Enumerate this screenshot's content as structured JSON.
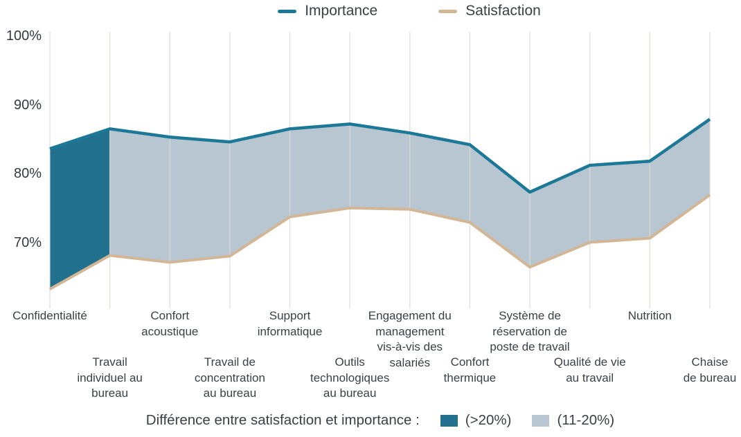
{
  "legend_top": {
    "items": [
      {
        "label": "Importance",
        "color": "#1B7896"
      },
      {
        "label": "Satisfaction",
        "color": "#D2B695"
      }
    ]
  },
  "chart_data": {
    "type": "area",
    "title": "",
    "xlabel": "",
    "ylabel": "",
    "ylim": [
      60,
      100
    ],
    "grid": true,
    "grid_color": "#dbdbd5",
    "ytick_labels": [
      "100%",
      "90%",
      "80%",
      "70%"
    ],
    "ytick_values": [
      100,
      90,
      80,
      70
    ],
    "categories": [
      {
        "label": "Confidentialité",
        "row": "top"
      },
      {
        "label": "Travail\nindividuel au\nbureau",
        "row": "bottom"
      },
      {
        "label": "Confort\nacoustique",
        "row": "top"
      },
      {
        "label": "Travail de\nconcentration\nau bureau",
        "row": "bottom"
      },
      {
        "label": "Support\ninformatique",
        "row": "top"
      },
      {
        "label": "Outils\ntechnologiques\nau bureau",
        "row": "bottom"
      },
      {
        "label": "Engagement du\nmanagement\nvis-à-vis des\nsalariés",
        "row": "top"
      },
      {
        "label": "Confort\nthermique",
        "row": "bottom"
      },
      {
        "label": "Système de\nréservation de\nposte de travail",
        "row": "top"
      },
      {
        "label": "Qualité de vie\nau travail",
        "row": "bottom"
      },
      {
        "label": "Nutrition",
        "row": "top"
      },
      {
        "label": "Chaise\nde bureau",
        "row": "bottom"
      }
    ],
    "series": [
      {
        "name": "Importance",
        "color": "#1B7896",
        "values": [
          83.6,
          86.5,
          85.3,
          84.6,
          86.5,
          87.2,
          85.9,
          84.2,
          77.3,
          81.2,
          81.8,
          87.9
        ]
      },
      {
        "name": "Satisfaction",
        "color": "#D2B695",
        "values": [
          63.2,
          68.1,
          67.1,
          68.0,
          73.7,
          75.0,
          74.8,
          72.9,
          66.4,
          70.0,
          70.6,
          76.9
        ]
      }
    ],
    "band_fill": {
      "dark": "#20708E",
      "light": "#B7C6D0",
      "dark_threshold_pct": 20
    },
    "legend_position": "top"
  },
  "legend_bottom": {
    "title": "Différence entre satisfaction et importance :",
    "items": [
      {
        "label": "(>20%)",
        "color": "#20708E"
      },
      {
        "label": "(11-20%)",
        "color": "#B7C6D0"
      }
    ]
  }
}
